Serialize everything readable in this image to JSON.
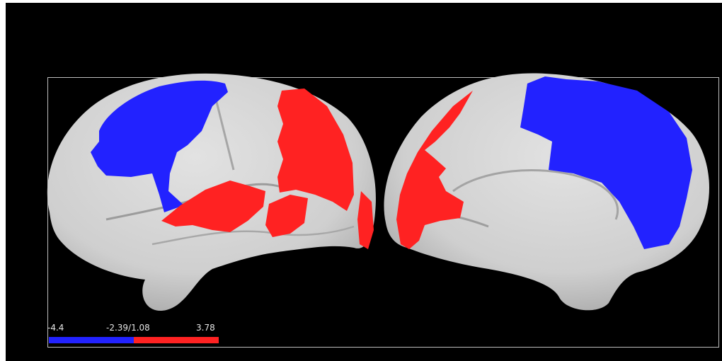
{
  "colorbar": {
    "min_label": "-4.4",
    "threshold_label": "-2.39/1.08",
    "max_label": "3.78",
    "negative_color": "#2222ff",
    "positive_color": "#ff2222"
  },
  "colors": {
    "background": "#000000",
    "surface": "#d4d4d4",
    "frame": "#bdbdbd"
  }
}
